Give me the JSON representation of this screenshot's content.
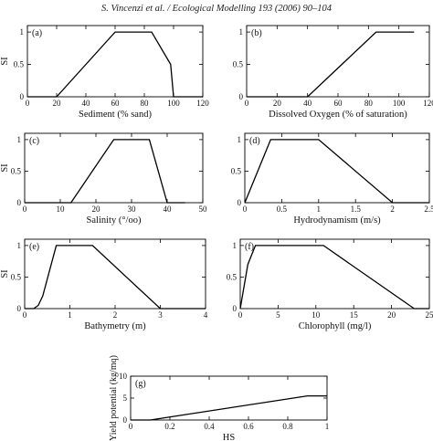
{
  "header": {
    "citation": "S. Vincenzi et al. / Ecological Modelling 193 (2006) 90–104"
  },
  "chart_data": [
    {
      "type": "line",
      "panel": "(a)",
      "xlabel": "Sediment (% sand)",
      "ylabel": "SI",
      "xlim": [
        0,
        120
      ],
      "ylim": [
        0,
        1.1
      ],
      "xticks": [
        "0",
        "20",
        "40",
        "60",
        "80",
        "100",
        "120"
      ],
      "yticks": [
        "0",
        "0.5",
        "1"
      ],
      "x": [
        0,
        20,
        60,
        85,
        98,
        100,
        120
      ],
      "y": [
        0,
        0,
        1,
        1,
        0.5,
        0,
        0
      ]
    },
    {
      "type": "line",
      "panel": "(b)",
      "xlabel": "Dissolved Oxygen (% of saturation)",
      "ylabel": "",
      "xlim": [
        0,
        120
      ],
      "ylim": [
        0,
        1.1
      ],
      "xticks": [
        "0",
        "20",
        "40",
        "60",
        "80",
        "100",
        "120"
      ],
      "yticks": [
        "0",
        "0.5",
        "1"
      ],
      "x": [
        0,
        40,
        85,
        110
      ],
      "y": [
        0,
        0,
        1,
        1
      ]
    },
    {
      "type": "line",
      "panel": "(c)",
      "xlabel": "Salinity (°/oo)",
      "ylabel": "SI",
      "xlim": [
        0,
        50
      ],
      "ylim": [
        0,
        1.1
      ],
      "xticks": [
        "0",
        "10",
        "20",
        "30",
        "40",
        "50"
      ],
      "yticks": [
        "0",
        "0.5",
        "1"
      ],
      "x": [
        0,
        13,
        25,
        35,
        40,
        45
      ],
      "y": [
        0,
        0,
        1,
        1,
        0,
        0
      ]
    },
    {
      "type": "line",
      "panel": "(d)",
      "xlabel": "Hydrodynamism (m/s)",
      "ylabel": "",
      "xlim": [
        0,
        2.5
      ],
      "ylim": [
        0,
        1.1
      ],
      "xticks": [
        "0",
        "0.5",
        "1",
        "1.5",
        "2",
        "2.5"
      ],
      "yticks": [
        "0",
        "0.5",
        "1"
      ],
      "x": [
        0,
        0.35,
        1,
        2,
        2.5
      ],
      "y": [
        0,
        1,
        1,
        0,
        0
      ]
    },
    {
      "type": "line",
      "panel": "(e)",
      "xlabel": "Bathymetry (m)",
      "ylabel": "SI",
      "xlim": [
        0,
        4
      ],
      "ylim": [
        0,
        1.1
      ],
      "xticks": [
        "0",
        "1",
        "2",
        "3",
        "4"
      ],
      "yticks": [
        "0",
        "0.5",
        "1"
      ],
      "x": [
        0,
        0.2,
        0.3,
        0.4,
        0.7,
        1.5,
        3,
        4
      ],
      "y": [
        0,
        0,
        0.05,
        0.2,
        1,
        1,
        0,
        0
      ]
    },
    {
      "type": "line",
      "panel": "(f)",
      "xlabel": "Chlorophyll (mg/l)",
      "ylabel": "",
      "xlim": [
        0,
        25
      ],
      "ylim": [
        0,
        1.1
      ],
      "xticks": [
        "0",
        "5",
        "10",
        "15",
        "20",
        "25"
      ],
      "yticks": [
        "0",
        "0.5",
        "1"
      ],
      "x": [
        0,
        1,
        2,
        11,
        23,
        25
      ],
      "y": [
        0,
        0.7,
        1,
        1,
        0,
        0
      ]
    },
    {
      "type": "line",
      "panel": "(g)",
      "xlabel": "HS",
      "ylabel": "Yield potential (kg/mq)",
      "xlim": [
        0,
        1
      ],
      "ylim": [
        0,
        10
      ],
      "xticks": [
        "0",
        "0.2",
        "0.4",
        "0.6",
        "0.8",
        "1"
      ],
      "yticks": [
        "0",
        "5",
        "10"
      ],
      "x": [
        0,
        0.1,
        0.9,
        1
      ],
      "y": [
        0,
        0,
        5.5,
        5.5
      ]
    }
  ]
}
